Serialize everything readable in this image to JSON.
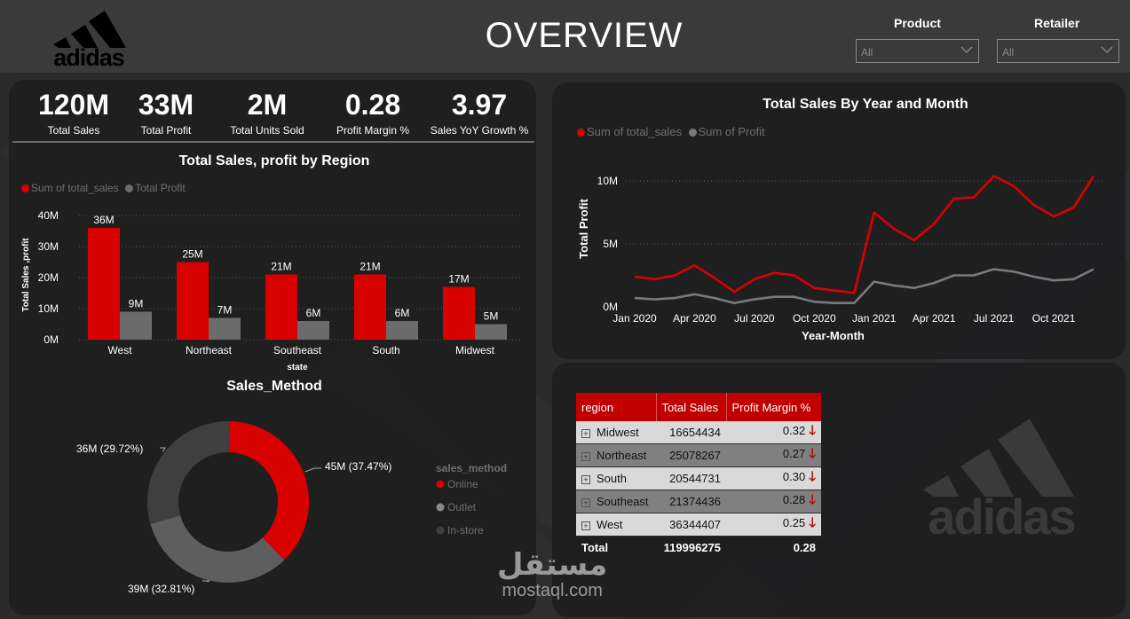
{
  "header": {
    "title": "OVERVIEW",
    "brand": "adidas",
    "slicers": [
      {
        "label": "Product",
        "value": "All"
      },
      {
        "label": "Retailer",
        "value": "All"
      }
    ]
  },
  "kpis": [
    {
      "value": "120M",
      "label": "Total Sales"
    },
    {
      "value": "33M",
      "label": "Total Profit"
    },
    {
      "value": "2M",
      "label": "Total Units Sold"
    },
    {
      "value": "0.28",
      "label": "Profit Margin %"
    },
    {
      "value": "3.97",
      "label": "Sales YoY Growth %"
    }
  ],
  "chart_data": [
    {
      "type": "bar",
      "title": "Total Sales, profit by Region",
      "xlabel": "state",
      "ylabel": "Total Sales ,profit",
      "categories": [
        "West",
        "Northeast",
        "Southeast",
        "South",
        "Midwest"
      ],
      "series": [
        {
          "name": "Sum of total_sales",
          "values": [
            36,
            25,
            21,
            21,
            17
          ],
          "labels": [
            "36M",
            "25M",
            "21M",
            "21M",
            "17M"
          ],
          "color": "#d90000"
        },
        {
          "name": "Total Profit",
          "values": [
            9,
            7,
            6,
            6,
            5
          ],
          "labels": [
            "9M",
            "7M",
            "6M",
            "6M",
            "5M"
          ],
          "color": "#6b6b6b"
        }
      ],
      "yticks": [
        "0M",
        "10M",
        "20M",
        "30M",
        "40M"
      ],
      "ylim": [
        0,
        40
      ],
      "grid": true,
      "legend": "top-left"
    },
    {
      "type": "line",
      "title": "Total Sales By Year and Month",
      "xlabel": "Year-Month",
      "ylabel": "Total Profit",
      "x": [
        "Jan 2020",
        "Feb 2020",
        "Mar 2020",
        "Apr 2020",
        "May 2020",
        "Jun 2020",
        "Jul 2020",
        "Aug 2020",
        "Sep 2020",
        "Oct 2020",
        "Nov 2020",
        "Dec 2020",
        "Jan 2021",
        "Feb 2021",
        "Mar 2021",
        "Apr 2021",
        "May 2021",
        "Jun 2021",
        "Jul 2021",
        "Aug 2021",
        "Sep 2021",
        "Oct 2021",
        "Nov 2021",
        "Dec 2021"
      ],
      "xticks": [
        "Jan 2020",
        "Apr 2020",
        "Jul 2020",
        "Oct 2020",
        "Jan 2021",
        "Apr 2021",
        "Jul 2021",
        "Oct 2021"
      ],
      "series": [
        {
          "name": "Sum of total_sales",
          "values": [
            2.4,
            2.2,
            2.5,
            3.3,
            2.3,
            1.2,
            2.2,
            2.7,
            2.5,
            1.5,
            1.3,
            1.1,
            7.5,
            6.2,
            5.3,
            6.6,
            8.6,
            8.7,
            10.4,
            9.6,
            8.1,
            7.2,
            7.9,
            10.4
          ],
          "color": "#d90000"
        },
        {
          "name": "Sum of Profit",
          "values": [
            0.7,
            0.6,
            0.7,
            1.0,
            0.7,
            0.3,
            0.6,
            0.8,
            0.8,
            0.4,
            0.3,
            0.3,
            2.0,
            1.7,
            1.5,
            1.9,
            2.5,
            2.5,
            3.0,
            2.8,
            2.4,
            2.1,
            2.2,
            3.0
          ],
          "color": "#7a7a7a"
        }
      ],
      "yticks": [
        "0M",
        "5M",
        "10M"
      ],
      "ylim": [
        0,
        11
      ],
      "grid": true,
      "legend": "top-left"
    },
    {
      "type": "pie",
      "title": "Sales_Method",
      "legend_title": "sales_method",
      "slices": [
        {
          "name": "Online",
          "value": 37.47,
          "label": "45M (37.47%)",
          "color": "#d90000"
        },
        {
          "name": "Outlet",
          "value": 32.81,
          "label": "39M (32.81%)",
          "color": "#5e5e5e"
        },
        {
          "name": "In-store",
          "value": 29.72,
          "label": "36M (29.72%)",
          "color": "#3f3f40"
        }
      ],
      "legend": "right"
    }
  ],
  "table": {
    "headers": [
      "region",
      "Total Sales",
      "Profit Margin %"
    ],
    "rows": [
      {
        "region": "Midwest",
        "sales": "16654434",
        "margin": "0.32"
      },
      {
        "region": "Northeast",
        "sales": "25078267",
        "margin": "0.27"
      },
      {
        "region": "South",
        "sales": "20544731",
        "margin": "0.30"
      },
      {
        "region": "Southeast",
        "sales": "21374436",
        "margin": "0.28"
      },
      {
        "region": "West",
        "sales": "36344407",
        "margin": "0.25"
      }
    ],
    "total": {
      "label": "Total",
      "sales": "119996275",
      "margin": "0.28"
    }
  },
  "watermark": {
    "arabic": "مستقل",
    "latin": "mostaql.com"
  }
}
